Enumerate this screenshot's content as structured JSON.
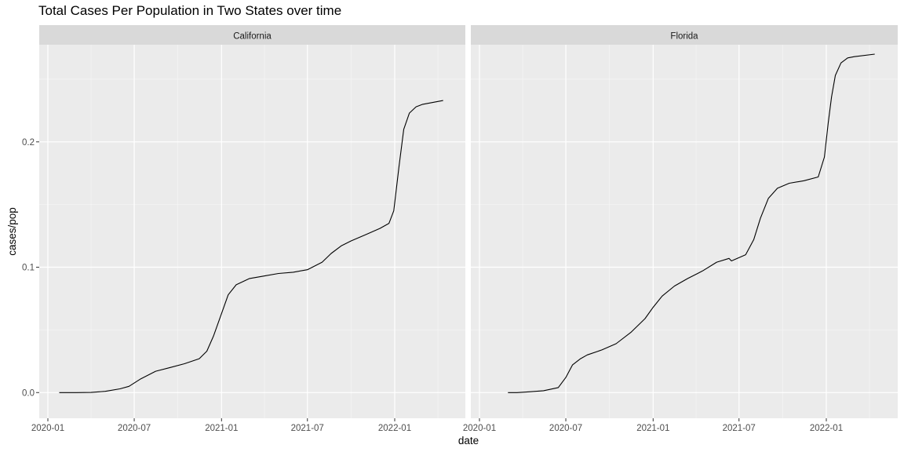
{
  "title": "Total Cases Per Population in Two States over time",
  "chart_data": {
    "type": "line",
    "title": "Total Cases Per Population in Two States over time",
    "xlabel": "date",
    "ylabel": "cases/pop",
    "x_axis": "date",
    "xlim": [
      "2020-01-01",
      "2022-05-01"
    ],
    "ylim": [
      0,
      0.27
    ],
    "x_ticks": [
      "2020-01",
      "2020-07",
      "2021-01",
      "2021-07",
      "2022-01"
    ],
    "y_ticks": [
      0.0,
      0.1,
      0.2
    ],
    "y_tick_labels": [
      "0.0",
      "0.1",
      "0.2"
    ],
    "grid": true,
    "facets": [
      {
        "name": "California",
        "x": [
          "2020-01-25",
          "2020-03-01",
          "2020-04-01",
          "2020-05-01",
          "2020-06-01",
          "2020-06-20",
          "2020-07-15",
          "2020-08-15",
          "2020-09-15",
          "2020-10-15",
          "2020-11-15",
          "2020-12-01",
          "2020-12-15",
          "2021-01-01",
          "2021-01-15",
          "2021-02-01",
          "2021-03-01",
          "2021-04-01",
          "2021-05-01",
          "2021-06-01",
          "2021-07-01",
          "2021-08-01",
          "2021-08-20",
          "2021-09-10",
          "2021-10-01",
          "2021-11-01",
          "2021-12-01",
          "2021-12-20",
          "2021-12-30",
          "2022-01-10",
          "2022-01-20",
          "2022-02-01",
          "2022-02-15",
          "2022-03-01",
          "2022-04-13"
        ],
        "values": [
          0.0,
          0.0,
          0.0001,
          0.001,
          0.003,
          0.005,
          0.011,
          0.017,
          0.02,
          0.023,
          0.027,
          0.033,
          0.045,
          0.063,
          0.078,
          0.086,
          0.091,
          0.093,
          0.095,
          0.096,
          0.098,
          0.104,
          0.111,
          0.117,
          0.121,
          0.126,
          0.131,
          0.135,
          0.145,
          0.18,
          0.21,
          0.223,
          0.228,
          0.23,
          0.233
        ]
      },
      {
        "name": "Florida",
        "x": [
          "2020-03-01",
          "2020-03-20",
          "2020-04-15",
          "2020-05-15",
          "2020-06-15",
          "2020-07-01",
          "2020-07-15",
          "2020-08-01",
          "2020-08-15",
          "2020-09-15",
          "2020-10-15",
          "2020-11-15",
          "2020-12-15",
          "2021-01-01",
          "2021-01-20",
          "2021-02-15",
          "2021-03-15",
          "2021-04-15",
          "2021-05-15",
          "2021-06-10",
          "2021-06-15",
          "2021-07-15",
          "2021-08-01",
          "2021-08-15",
          "2021-09-01",
          "2021-09-20",
          "2021-10-15",
          "2021-11-15",
          "2021-12-15",
          "2021-12-28",
          "2022-01-05",
          "2022-01-12",
          "2022-01-20",
          "2022-02-01",
          "2022-02-15",
          "2022-03-01",
          "2022-04-13"
        ],
        "values": [
          0.0,
          0.0,
          0.0006,
          0.0015,
          0.004,
          0.012,
          0.022,
          0.027,
          0.03,
          0.034,
          0.039,
          0.048,
          0.059,
          0.068,
          0.077,
          0.085,
          0.091,
          0.097,
          0.104,
          0.107,
          0.105,
          0.11,
          0.122,
          0.139,
          0.155,
          0.163,
          0.167,
          0.169,
          0.172,
          0.188,
          0.215,
          0.236,
          0.253,
          0.263,
          0.267,
          0.268,
          0.27
        ]
      }
    ]
  }
}
